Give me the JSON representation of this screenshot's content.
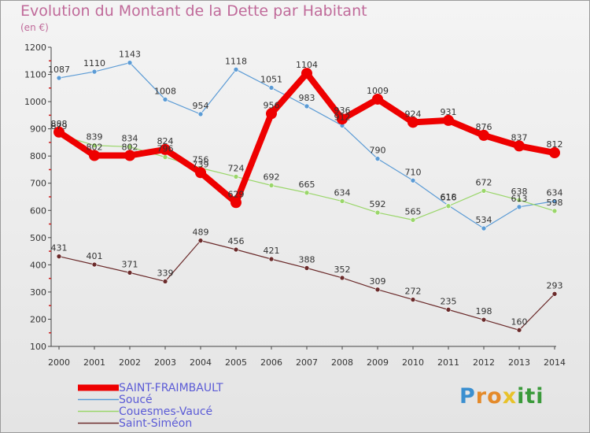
{
  "header": {
    "title": "Evolution du Montant de la Dette par Habitant",
    "subtitle": "(en €)"
  },
  "logo": {
    "text": "Proxiti",
    "letters": [
      {
        "ch": "P",
        "color": "#3a8fd0"
      },
      {
        "ch": "r",
        "color": "#e48a2a"
      },
      {
        "ch": "o",
        "color": "#e48a2a"
      },
      {
        "ch": "x",
        "color": "#e8c22a"
      },
      {
        "ch": "i",
        "color": "#3a9a3a"
      },
      {
        "ch": "t",
        "color": "#3a9a3a"
      },
      {
        "ch": "i",
        "color": "#3a9a3a"
      }
    ]
  },
  "chart_data": {
    "type": "line",
    "title": "Evolution du Montant de la Dette par Habitant",
    "ylabel": "(en €)",
    "xlabel": "",
    "x": [
      "2000",
      "2001",
      "2002",
      "2003",
      "2004",
      "2005",
      "2006",
      "2007",
      "2008",
      "2009",
      "2010",
      "2011",
      "2012",
      "2013",
      "2014"
    ],
    "ylim": [
      100,
      1200
    ],
    "yticks": [
      100,
      200,
      300,
      400,
      500,
      600,
      700,
      800,
      900,
      1000,
      1100,
      1200
    ],
    "grid": false,
    "legend_position": "bottom-left",
    "series": [
      {
        "name": "SAINT-FRAIMBAULT",
        "color": "#ee0000",
        "width": 8,
        "marker": 7,
        "values": [
          888,
          802,
          802,
          824,
          739,
          629,
          956,
          1104,
          936,
          1009,
          924,
          931,
          876,
          837,
          812
        ]
      },
      {
        "name": "Soucé",
        "color": "#5b9bd5",
        "width": 1.2,
        "marker": 3,
        "values": [
          1087,
          1110,
          1143,
          1008,
          954,
          1118,
          1051,
          983,
          912,
          790,
          710,
          618,
          534,
          613,
          634
        ]
      },
      {
        "name": "Couesmes-Vaucé",
        "color": "#9ad66a",
        "width": 1.2,
        "marker": 3,
        "values": [
          879,
          839,
          834,
          796,
          756,
          724,
          692,
          665,
          634,
          592,
          565,
          616,
          672,
          638,
          598
        ]
      },
      {
        "name": "Saint-Siméon",
        "color": "#6b2b2b",
        "width": 1.2,
        "marker": 3,
        "values": [
          431,
          401,
          371,
          339,
          489,
          456,
          421,
          388,
          352,
          309,
          272,
          235,
          198,
          160,
          293
        ]
      }
    ]
  }
}
